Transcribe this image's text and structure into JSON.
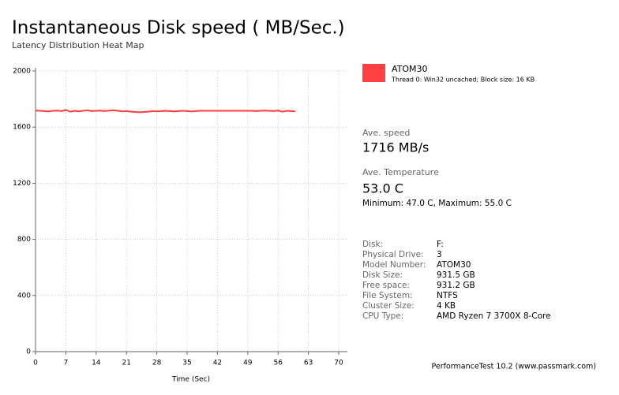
{
  "chart_data": {
    "type": "line",
    "title": "Instantaneous Disk speed ( MB/Sec.)",
    "subtitle": "Latency Distribution Heat Map",
    "x_label": "Time (Sec)",
    "x": [
      0,
      1,
      2,
      3,
      4,
      5,
      6,
      7,
      8,
      9,
      10,
      11,
      12,
      13,
      14,
      15,
      16,
      17,
      18,
      19,
      20,
      21,
      22,
      23,
      24,
      25,
      26,
      27,
      28,
      29,
      30,
      31,
      32,
      33,
      34,
      35,
      36,
      37,
      38,
      39,
      40,
      41,
      42,
      43,
      44,
      45,
      46,
      47,
      48,
      49,
      50,
      51,
      52,
      53,
      54,
      55,
      56,
      57,
      58,
      59,
      60
    ],
    "series": [
      {
        "name": "ATOM30",
        "description": "Thread 0: Win32 uncached; Block size: 16 KB",
        "color": "#ff4040",
        "values": [
          1718,
          1716,
          1714,
          1712,
          1716,
          1718,
          1714,
          1722,
          1710,
          1716,
          1712,
          1716,
          1720,
          1714,
          1716,
          1718,
          1714,
          1718,
          1720,
          1716,
          1712,
          1714,
          1710,
          1708,
          1706,
          1708,
          1710,
          1714,
          1712,
          1714,
          1716,
          1714,
          1712,
          1714,
          1716,
          1714,
          1712,
          1714,
          1716,
          1716,
          1716,
          1716,
          1716,
          1716,
          1716,
          1716,
          1716,
          1716,
          1716,
          1716,
          1716,
          1714,
          1716,
          1718,
          1716,
          1714,
          1718,
          1710,
          1716,
          1714,
          1712
        ]
      }
    ],
    "xlim": [
      0,
      72
    ],
    "ylim": [
      0,
      2000
    ],
    "xticks": [
      0,
      7,
      14,
      21,
      28,
      35,
      42,
      49,
      56,
      63,
      70
    ],
    "yticks": [
      0,
      400,
      800,
      1200,
      1600,
      2000
    ],
    "grid": true
  },
  "panel": {
    "avg_speed_label": "Ave. speed",
    "avg_speed": "1716 MB/s",
    "avg_temp_label": "Ave. Temperature",
    "avg_temp": "53.0 C",
    "temp_range": "Minimum: 47.0 C, Maximum: 55.0 C",
    "info": [
      [
        "Disk:",
        "F:"
      ],
      [
        "Physical Drive:",
        "3"
      ],
      [
        "Model Number:",
        "ATOM30"
      ],
      [
        "Disk Size:",
        "931.5 GB"
      ],
      [
        "Free space:",
        "931.2 GB"
      ],
      [
        "File System:",
        "NTFS"
      ],
      [
        "Cluster Size:",
        "4 KB"
      ],
      [
        "CPU Type:",
        "AMD Ryzen 7 3700X 8-Core"
      ]
    ]
  },
  "footer": "PerformanceTest 10.2 (www.passmark.com)"
}
